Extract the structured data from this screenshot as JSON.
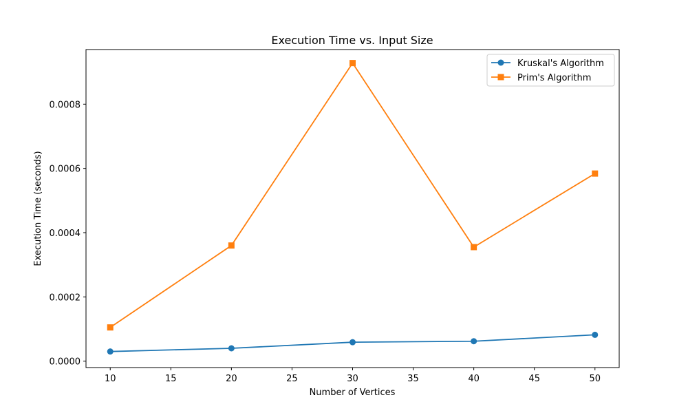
{
  "chart_data": {
    "type": "line",
    "title": "Execution Time vs. Input Size",
    "xlabel": "Number of Vertices",
    "ylabel": "Execution Time (seconds)",
    "x": [
      10,
      20,
      30,
      40,
      50
    ],
    "xlim": [
      8,
      52
    ],
    "ylim": [
      -2e-05,
      0.00097
    ],
    "xticks": [
      10,
      15,
      20,
      25,
      30,
      35,
      40,
      45,
      50
    ],
    "xtick_labels": [
      "10",
      "15",
      "20",
      "25",
      "30",
      "35",
      "40",
      "45",
      "50"
    ],
    "yticks": [
      0,
      0.0002,
      0.0004,
      0.0006,
      0.0008
    ],
    "ytick_labels": [
      "0.0000",
      "0.0002",
      "0.0004",
      "0.0006",
      "0.0008"
    ],
    "grid": false,
    "legend_position": "top-right",
    "series": [
      {
        "name": "Kruskal's Algorithm",
        "color": "#1f77b4",
        "marker": "circle",
        "values": [
          3e-05,
          4e-05,
          5.9e-05,
          6.2e-05,
          8.2e-05
        ]
      },
      {
        "name": "Prim's Algorithm",
        "color": "#ff7f0e",
        "marker": "square",
        "values": [
          0.000105,
          0.00036,
          0.000928,
          0.000355,
          0.000584
        ]
      }
    ]
  }
}
